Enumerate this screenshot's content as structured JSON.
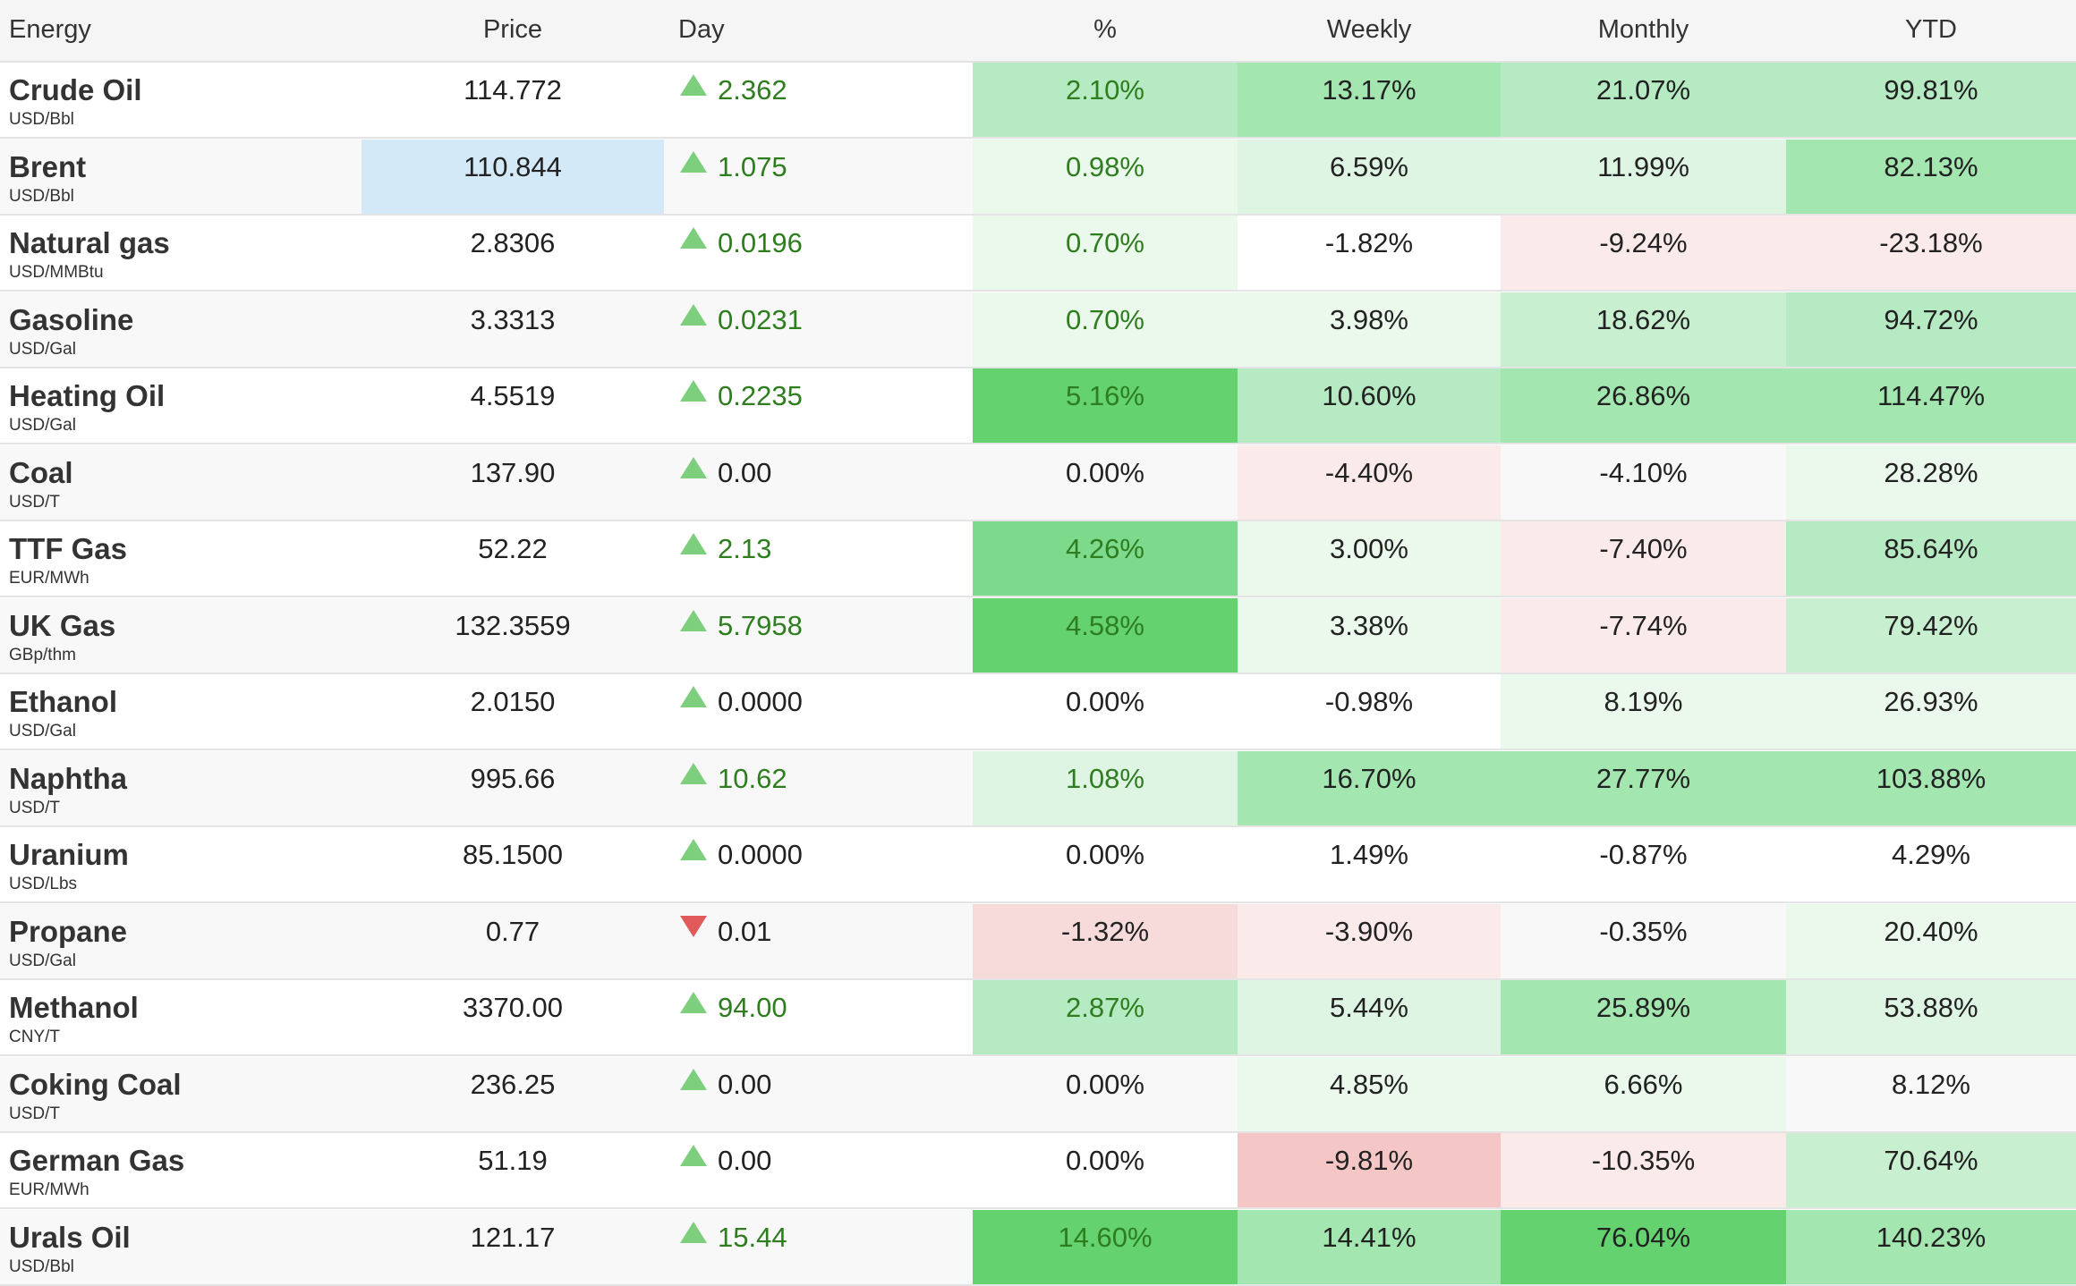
{
  "header": {
    "energy": "Energy",
    "price": "Price",
    "day": "Day",
    "pct": "%",
    "weekly": "Weekly",
    "monthly": "Monthly",
    "ytd": "YTD"
  },
  "colors": {
    "up_arrow": "#7dcf7d",
    "down_arrow": "#e05a5a",
    "positive_text": "#2e7d1f",
    "selected_cell": "#d4e9f7",
    "green_scale": [
      "#ffffff",
      "#ebf8ec",
      "#dff5e3",
      "#c8efd0",
      "#b6eac2",
      "#a3e6b0",
      "#7dd98c",
      "#63d26f"
    ],
    "red_scale": [
      "#ffffff",
      "#fbeaea",
      "#f7dada",
      "#f4c6c6"
    ]
  },
  "rows": [
    {
      "name": "Crude Oil",
      "unit": "USD/Bbl",
      "price": "114.772",
      "dir": "up",
      "day": "2.362",
      "pct": "2.10%",
      "weekly": "13.17%",
      "monthly": "21.07%",
      "ytd": "99.81%",
      "shade": {
        "pct": "g4",
        "weekly": "g5",
        "monthly": "g4",
        "ytd": "g4"
      }
    },
    {
      "name": "Brent",
      "unit": "USD/Bbl",
      "price": "110.844",
      "dir": "up",
      "day": "1.075",
      "pct": "0.98%",
      "weekly": "6.59%",
      "monthly": "11.99%",
      "ytd": "82.13%",
      "shade": {
        "pct": "g1",
        "weekly": "g2",
        "monthly": "g2",
        "ytd": "g5"
      },
      "selected": "price"
    },
    {
      "name": "Natural gas",
      "unit": "USD/MMBtu",
      "price": "2.8306",
      "dir": "up",
      "day": "0.0196",
      "pct": "0.70%",
      "weekly": "-1.82%",
      "monthly": "-9.24%",
      "ytd": "-23.18%",
      "shade": {
        "pct": "g1",
        "weekly": "n",
        "monthly": "r1",
        "ytd": "r1"
      }
    },
    {
      "name": "Gasoline",
      "unit": "USD/Gal",
      "price": "3.3313",
      "dir": "up",
      "day": "0.0231",
      "pct": "0.70%",
      "weekly": "3.98%",
      "monthly": "18.62%",
      "ytd": "94.72%",
      "shade": {
        "pct": "g1",
        "weekly": "g1",
        "monthly": "g3",
        "ytd": "g4"
      }
    },
    {
      "name": "Heating Oil",
      "unit": "USD/Gal",
      "price": "4.5519",
      "dir": "up",
      "day": "0.2235",
      "pct": "5.16%",
      "weekly": "10.60%",
      "monthly": "26.86%",
      "ytd": "114.47%",
      "shade": {
        "pct": "g7",
        "weekly": "g4",
        "monthly": "g5",
        "ytd": "g5"
      }
    },
    {
      "name": "Coal",
      "unit": "USD/T",
      "price": "137.90",
      "dir": "up",
      "day": "0.00",
      "pct": "0.00%",
      "weekly": "-4.40%",
      "monthly": "-4.10%",
      "ytd": "28.28%",
      "shade": {
        "pct": "n",
        "weekly": "r1",
        "monthly": "n",
        "ytd": "g1"
      }
    },
    {
      "name": "TTF Gas",
      "unit": "EUR/MWh",
      "price": "52.22",
      "dir": "up",
      "day": "2.13",
      "pct": "4.26%",
      "weekly": "3.00%",
      "monthly": "-7.40%",
      "ytd": "85.64%",
      "shade": {
        "pct": "g6",
        "weekly": "g1",
        "monthly": "r1",
        "ytd": "g4"
      }
    },
    {
      "name": "UK Gas",
      "unit": "GBp/thm",
      "price": "132.3559",
      "dir": "up",
      "day": "5.7958",
      "pct": "4.58%",
      "weekly": "3.38%",
      "monthly": "-7.74%",
      "ytd": "79.42%",
      "shade": {
        "pct": "g7",
        "weekly": "g1",
        "monthly": "r1",
        "ytd": "g3"
      }
    },
    {
      "name": "Ethanol",
      "unit": "USD/Gal",
      "price": "2.0150",
      "dir": "up",
      "day": "0.0000",
      "pct": "0.00%",
      "weekly": "-0.98%",
      "monthly": "8.19%",
      "ytd": "26.93%",
      "shade": {
        "pct": "n",
        "weekly": "n",
        "monthly": "g1",
        "ytd": "g1"
      }
    },
    {
      "name": "Naphtha",
      "unit": "USD/T",
      "price": "995.66",
      "dir": "up",
      "day": "10.62",
      "pct": "1.08%",
      "weekly": "16.70%",
      "monthly": "27.77%",
      "ytd": "103.88%",
      "shade": {
        "pct": "g2",
        "weekly": "g5",
        "monthly": "g5",
        "ytd": "g5"
      }
    },
    {
      "name": "Uranium",
      "unit": "USD/Lbs",
      "price": "85.1500",
      "dir": "up",
      "day": "0.0000",
      "pct": "0.00%",
      "weekly": "1.49%",
      "monthly": "-0.87%",
      "ytd": "4.29%",
      "shade": {
        "pct": "n",
        "weekly": "n",
        "monthly": "n",
        "ytd": "n"
      }
    },
    {
      "name": "Propane",
      "unit": "USD/Gal",
      "price": "0.77",
      "dir": "down",
      "day": "0.01",
      "pct": "-1.32%",
      "weekly": "-3.90%",
      "monthly": "-0.35%",
      "ytd": "20.40%",
      "shade": {
        "pct": "r2",
        "weekly": "r1",
        "monthly": "n",
        "ytd": "g1"
      }
    },
    {
      "name": "Methanol",
      "unit": "CNY/T",
      "price": "3370.00",
      "dir": "up",
      "day": "94.00",
      "pct": "2.87%",
      "weekly": "5.44%",
      "monthly": "25.89%",
      "ytd": "53.88%",
      "shade": {
        "pct": "g4",
        "weekly": "g2",
        "monthly": "g5",
        "ytd": "g2"
      }
    },
    {
      "name": "Coking Coal",
      "unit": "USD/T",
      "price": "236.25",
      "dir": "up",
      "day": "0.00",
      "pct": "0.00%",
      "weekly": "4.85%",
      "monthly": "6.66%",
      "ytd": "8.12%",
      "shade": {
        "pct": "n",
        "weekly": "g1",
        "monthly": "g1",
        "ytd": "n"
      }
    },
    {
      "name": "German Gas",
      "unit": "EUR/MWh",
      "price": "51.19",
      "dir": "up",
      "day": "0.00",
      "pct": "0.00%",
      "weekly": "-9.81%",
      "monthly": "-10.35%",
      "ytd": "70.64%",
      "shade": {
        "pct": "n",
        "weekly": "r3",
        "monthly": "r1",
        "ytd": "g3"
      }
    },
    {
      "name": "Urals Oil",
      "unit": "USD/Bbl",
      "price": "121.17",
      "dir": "up",
      "day": "15.44",
      "pct": "14.60%",
      "weekly": "14.41%",
      "monthly": "76.04%",
      "ytd": "140.23%",
      "shade": {
        "pct": "g7",
        "weekly": "g5",
        "monthly": "g7",
        "ytd": "g5"
      }
    }
  ]
}
